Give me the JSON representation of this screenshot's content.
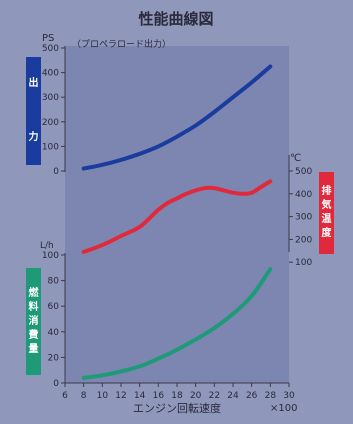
{
  "chart_data": {
    "type": "line",
    "title": "性能曲線図",
    "xlabel": "エンジン回転速度",
    "x_multiplier": "×100",
    "xlim": [
      6,
      30
    ],
    "x_ticks": [
      6,
      8,
      10,
      12,
      14,
      16,
      18,
      20,
      22,
      24,
      26,
      28,
      30
    ],
    "panels": {
      "power": {
        "unit": "PS",
        "note": "（プロペラロード出力）",
        "label": "出力",
        "ylim": [
          0,
          500
        ],
        "y_ticks": [
          0,
          100,
          200,
          300,
          400,
          500
        ],
        "color": "#1a3c9e",
        "x": [
          8,
          10,
          12,
          14,
          16,
          18,
          20,
          22,
          24,
          26,
          28
        ],
        "values": [
          10,
          25,
          45,
          70,
          100,
          140,
          185,
          240,
          300,
          360,
          425
        ]
      },
      "exhaust": {
        "unit": "℃",
        "label": "排気温度",
        "ylim": [
          0,
          500
        ],
        "y_ticks": [
          100,
          200,
          300,
          400,
          500
        ],
        "color": "#e02a3c",
        "x": [
          8,
          10,
          12,
          14,
          16,
          17,
          18,
          19,
          20,
          21,
          22,
          23,
          24,
          25,
          26,
          27,
          28
        ],
        "values": [
          145,
          175,
          215,
          255,
          330,
          360,
          380,
          400,
          415,
          425,
          425,
          415,
          405,
          400,
          405,
          430,
          455
        ]
      },
      "fuel": {
        "unit": "L/h",
        "label": "燃料消費量",
        "ylim": [
          0,
          100
        ],
        "y_ticks": [
          0,
          20,
          40,
          60,
          80,
          100
        ],
        "color": "#1e9a78",
        "x": [
          8,
          10,
          12,
          14,
          16,
          18,
          20,
          22,
          24,
          26,
          28
        ],
        "values": [
          4,
          6,
          9,
          13,
          19,
          26,
          34,
          43,
          54,
          68,
          89
        ]
      }
    }
  }
}
